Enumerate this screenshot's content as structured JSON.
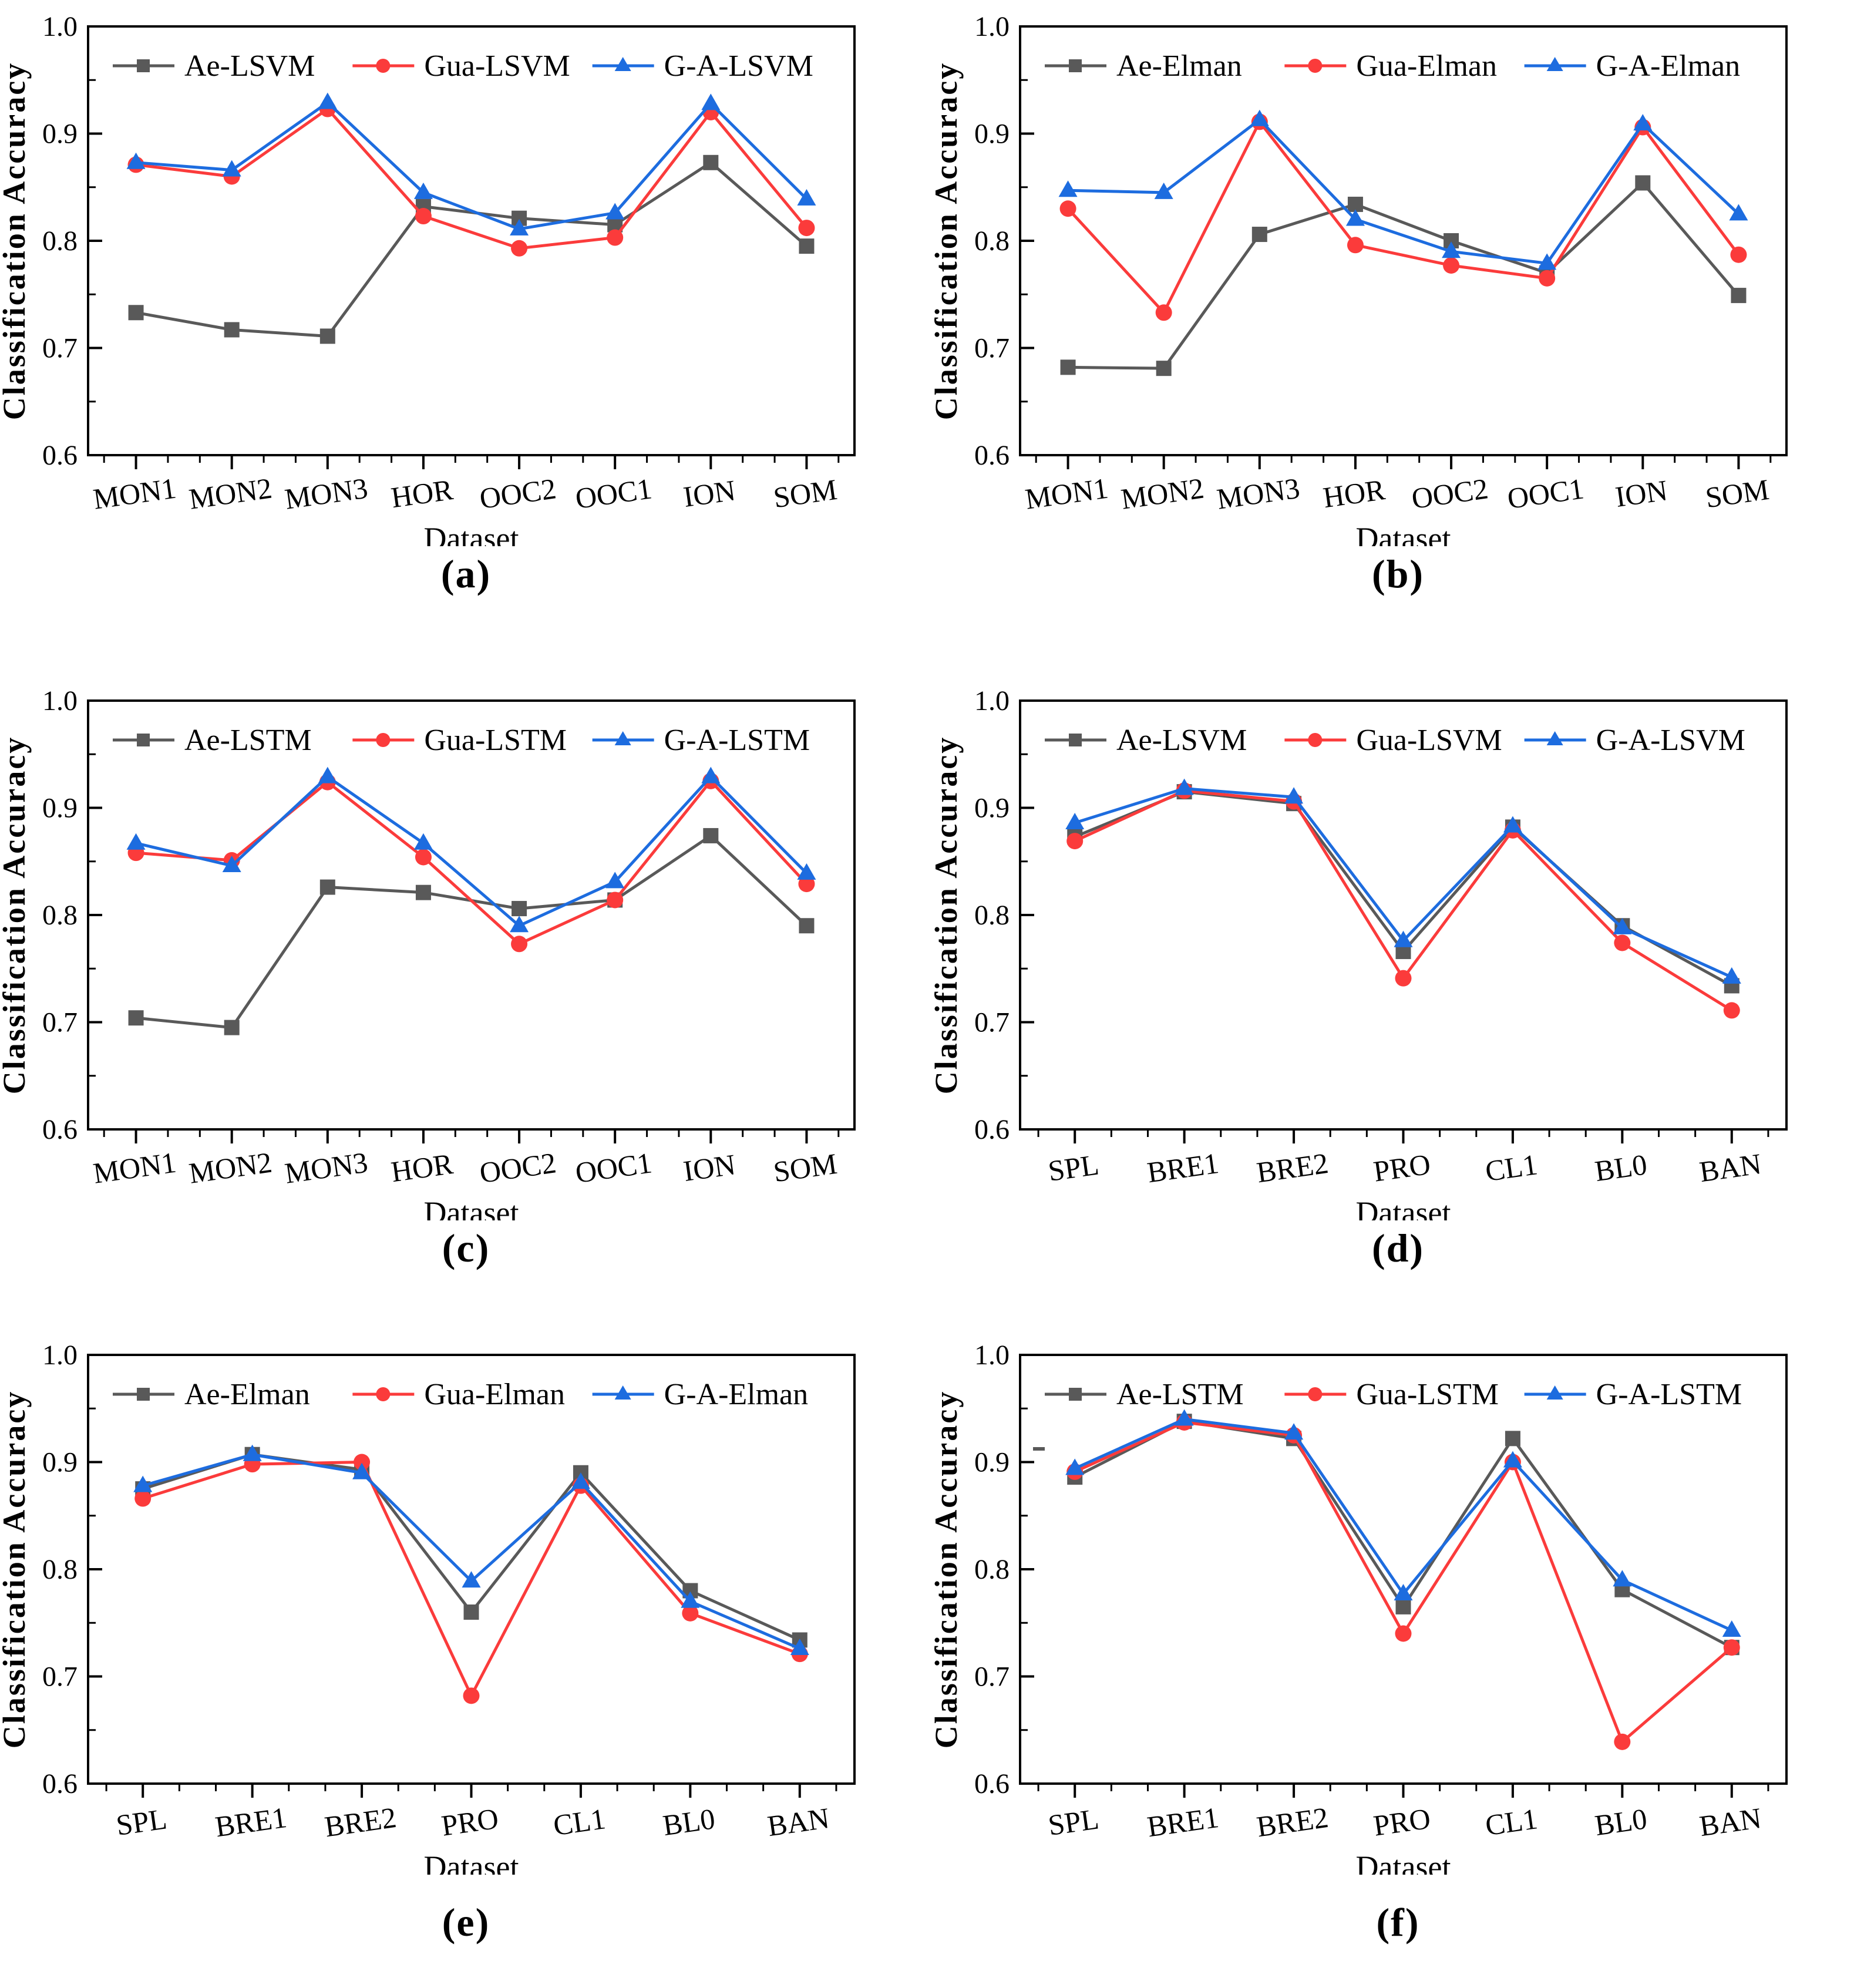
{
  "figure": {
    "ylabel": "Classification Accuracy",
    "xlabel": "Dataset",
    "ylim": [
      0.6,
      1.0
    ],
    "yticks": [
      "0.6",
      "0.7",
      "0.8",
      "0.9",
      "1.0"
    ],
    "series_colors": {
      "ae": "#595959",
      "gua": "#FB3B3B",
      "ga": "#1D6CDF"
    }
  },
  "chart_data": [
    {
      "id": "a",
      "caption": "(a)",
      "type": "line",
      "grid": false,
      "xlabel": "Dataset",
      "ylabel": "Classification Accuracy",
      "ylim": [
        0.6,
        1.0
      ],
      "yticks": [
        0.6,
        0.7,
        0.8,
        0.9,
        1.0
      ],
      "legend_position": "top-inside",
      "categories": [
        "MON1",
        "MON2",
        "MON3",
        "HOR",
        "OOC2",
        "OOC1",
        "ION",
        "SOM"
      ],
      "series": [
        {
          "name": "Ae-LSVM",
          "marker": "square",
          "color": "#595959",
          "values": [
            0.733,
            0.717,
            0.711,
            0.832,
            0.821,
            0.815,
            0.873,
            0.795
          ]
        },
        {
          "name": "Gua-LSVM",
          "marker": "circle",
          "color": "#FB3B3B",
          "values": [
            0.871,
            0.86,
            0.923,
            0.823,
            0.793,
            0.803,
            0.92,
            0.812
          ]
        },
        {
          "name": "G-A-LSVM",
          "marker": "triangle",
          "color": "#1D6CDF",
          "values": [
            0.873,
            0.866,
            0.929,
            0.845,
            0.811,
            0.826,
            0.928,
            0.839
          ]
        }
      ]
    },
    {
      "id": "b",
      "caption": "(b)",
      "type": "line",
      "grid": false,
      "xlabel": "Dataset",
      "ylabel": "Classification Accuracy",
      "ylim": [
        0.6,
        1.0
      ],
      "yticks": [
        0.6,
        0.7,
        0.8,
        0.9,
        1.0
      ],
      "legend_position": "top-inside",
      "categories": [
        "MON1",
        "MON2",
        "MON3",
        "HOR",
        "OOC2",
        "OOC1",
        "ION",
        "SOM"
      ],
      "series": [
        {
          "name": "Ae-Elman",
          "marker": "square",
          "color": "#595959",
          "values": [
            0.682,
            0.681,
            0.806,
            0.834,
            0.8,
            0.77,
            0.854,
            0.749
          ]
        },
        {
          "name": "Gua-Elman",
          "marker": "circle",
          "color": "#FB3B3B",
          "values": [
            0.83,
            0.733,
            0.911,
            0.796,
            0.777,
            0.765,
            0.906,
            0.787
          ]
        },
        {
          "name": "G-A-Elman",
          "marker": "triangle",
          "color": "#1D6CDF",
          "values": [
            0.847,
            0.845,
            0.913,
            0.82,
            0.79,
            0.779,
            0.909,
            0.825
          ]
        }
      ]
    },
    {
      "id": "c",
      "caption": "(c)",
      "type": "line",
      "grid": false,
      "xlabel": "Dataset",
      "ylabel": "Classification Accuracy",
      "ylim": [
        0.6,
        1.0
      ],
      "yticks": [
        0.6,
        0.7,
        0.8,
        0.9,
        1.0
      ],
      "legend_position": "top-inside",
      "categories": [
        "MON1",
        "MON2",
        "MON3",
        "HOR",
        "OOC2",
        "OOC1",
        "ION",
        "SOM"
      ],
      "series": [
        {
          "name": "Ae-LSTM",
          "marker": "square",
          "color": "#595959",
          "values": [
            0.704,
            0.695,
            0.826,
            0.821,
            0.806,
            0.814,
            0.874,
            0.79
          ]
        },
        {
          "name": "Gua-LSTM",
          "marker": "circle",
          "color": "#FB3B3B",
          "values": [
            0.858,
            0.851,
            0.924,
            0.854,
            0.773,
            0.814,
            0.925,
            0.829
          ]
        },
        {
          "name": "G-A-LSTM",
          "marker": "triangle",
          "color": "#1D6CDF",
          "values": [
            0.867,
            0.846,
            0.929,
            0.867,
            0.79,
            0.831,
            0.929,
            0.839
          ]
        }
      ]
    },
    {
      "id": "d",
      "caption": "(d)",
      "type": "line",
      "grid": false,
      "xlabel": "Dataset",
      "ylabel": "Classification Accuracy",
      "ylim": [
        0.6,
        1.0
      ],
      "yticks": [
        0.6,
        0.7,
        0.8,
        0.9,
        1.0
      ],
      "legend_position": "top-inside",
      "categories": [
        "SPL",
        "BRE1",
        "BRE2",
        "PRO",
        "CL1",
        "BL0",
        "BAN"
      ],
      "series": [
        {
          "name": "Ae-LSVM",
          "marker": "square",
          "color": "#595959",
          "values": [
            0.873,
            0.915,
            0.904,
            0.766,
            0.882,
            0.79,
            0.734
          ]
        },
        {
          "name": "Gua-LSVM",
          "marker": "circle",
          "color": "#FB3B3B",
          "values": [
            0.869,
            0.916,
            0.906,
            0.741,
            0.879,
            0.774,
            0.711
          ]
        },
        {
          "name": "G-A-LSVM",
          "marker": "triangle",
          "color": "#1D6CDF",
          "values": [
            0.886,
            0.918,
            0.91,
            0.776,
            0.883,
            0.788,
            0.742
          ]
        }
      ]
    },
    {
      "id": "e",
      "caption": "(e)",
      "type": "line",
      "grid": false,
      "xlabel": "Dataset",
      "ylabel": "Classification Accuracy",
      "ylim": [
        0.6,
        1.0
      ],
      "yticks": [
        0.6,
        0.7,
        0.8,
        0.9,
        1.0
      ],
      "legend_position": "top-inside",
      "categories": [
        "SPL",
        "BRE1",
        "BRE2",
        "PRO",
        "CL1",
        "BL0",
        "BAN"
      ],
      "series": [
        {
          "name": "Ae-Elman",
          "marker": "square",
          "color": "#595959",
          "values": [
            0.875,
            0.907,
            0.893,
            0.76,
            0.89,
            0.78,
            0.734
          ]
        },
        {
          "name": "Gua-Elman",
          "marker": "circle",
          "color": "#FB3B3B",
          "values": [
            0.866,
            0.898,
            0.9,
            0.682,
            0.878,
            0.759,
            0.721
          ]
        },
        {
          "name": "G-A-Elman",
          "marker": "triangle",
          "color": "#1D6CDF",
          "values": [
            0.878,
            0.907,
            0.89,
            0.789,
            0.881,
            0.77,
            0.726
          ]
        }
      ]
    },
    {
      "id": "f",
      "caption": "(f)",
      "type": "line",
      "grid": false,
      "xlabel": "Dataset",
      "ylabel": "Classification Accuracy",
      "ylim": [
        0.6,
        1.0
      ],
      "yticks": [
        0.6,
        0.7,
        0.8,
        0.9,
        1.0
      ],
      "legend_position": "top-inside",
      "stray_dash": true,
      "categories": [
        "SPL",
        "BRE1",
        "BRE2",
        "PRO",
        "CL1",
        "BL0",
        "BAN"
      ],
      "series": [
        {
          "name": "Ae-LSTM",
          "marker": "square",
          "color": "#595959",
          "values": [
            0.886,
            0.938,
            0.922,
            0.765,
            0.922,
            0.781,
            0.727
          ]
        },
        {
          "name": "Gua-LSTM",
          "marker": "circle",
          "color": "#FB3B3B",
          "values": [
            0.891,
            0.937,
            0.925,
            0.74,
            0.9,
            0.639,
            0.727
          ]
        },
        {
          "name": "G-A-LSTM",
          "marker": "triangle",
          "color": "#1D6CDF",
          "values": [
            0.894,
            0.94,
            0.927,
            0.777,
            0.901,
            0.79,
            0.743
          ]
        }
      ]
    }
  ]
}
